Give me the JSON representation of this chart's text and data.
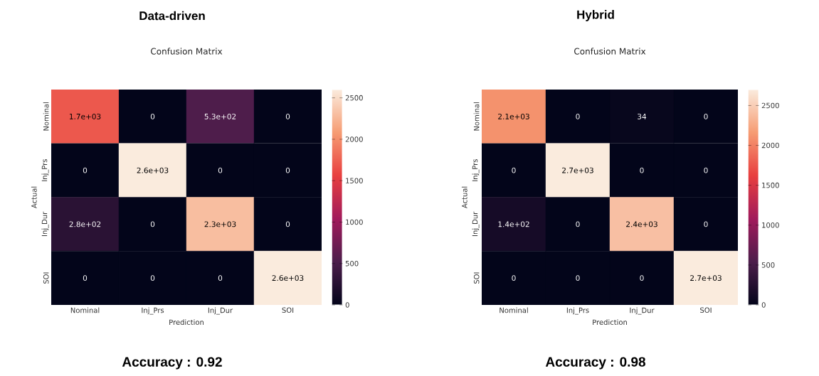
{
  "chart_data": [
    {
      "type": "heatmap",
      "title": "Data-driven",
      "subtitle": "Confusion Matrix",
      "xlabel": "Prediction",
      "ylabel": "Actual",
      "categories": [
        "Nominal",
        "Inj_Prs",
        "Inj_Dur",
        "SOI"
      ],
      "y_categories": [
        "Nominal",
        "Inj_Prs",
        "Inj_Dur",
        "SOI"
      ],
      "cells": [
        [
          1700,
          0,
          530,
          0
        ],
        [
          0,
          2600,
          0,
          0
        ],
        [
          280,
          0,
          2300,
          0
        ],
        [
          0,
          0,
          0,
          2600
        ]
      ],
      "cell_labels": [
        [
          "1.7e+03",
          "0",
          "5.3e+02",
          "0"
        ],
        [
          "0",
          "2.6e+03",
          "0",
          "0"
        ],
        [
          "2.8e+02",
          "0",
          "2.3e+03",
          "0"
        ],
        [
          "0",
          "0",
          "0",
          "2.6e+03"
        ]
      ],
      "clim": [
        0,
        2600
      ],
      "cticks": [
        0,
        500,
        1000,
        1500,
        2000,
        2500
      ],
      "annotations": [
        "Accuracy : 0.92"
      ]
    },
    {
      "type": "heatmap",
      "title": "Hybrid",
      "subtitle": "Confusion Matrix",
      "xlabel": "Prediction",
      "ylabel": "Actual",
      "categories": [
        "Nominal",
        "Inj_Prs",
        "Inj_Dur",
        "SOI"
      ],
      "y_categories": [
        "Nominal",
        "Inj_Prs",
        "Inj_Dur",
        "SOI"
      ],
      "cells": [
        [
          2100,
          0,
          34,
          0
        ],
        [
          0,
          2700,
          0,
          0
        ],
        [
          140,
          0,
          2400,
          0
        ],
        [
          0,
          0,
          0,
          2700
        ]
      ],
      "cell_labels": [
        [
          "2.1e+03",
          "0",
          "34",
          "0"
        ],
        [
          "0",
          "2.7e+03",
          "0",
          "0"
        ],
        [
          "1.4e+02",
          "0",
          "2.4e+03",
          "0"
        ],
        [
          "0",
          "0",
          "0",
          "2.7e+03"
        ]
      ],
      "clim": [
        0,
        2700
      ],
      "cticks": [
        0,
        500,
        1000,
        1500,
        2000,
        2500
      ],
      "annotations": [
        "Accuracy : 0.98"
      ]
    }
  ]
}
